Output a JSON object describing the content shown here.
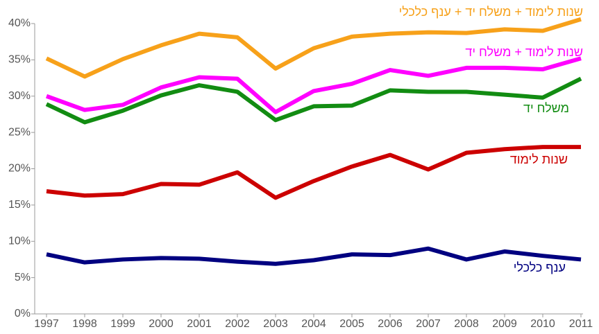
{
  "chart_data": {
    "type": "line",
    "x": [
      1997,
      1998,
      1999,
      2000,
      2001,
      2002,
      2003,
      2004,
      2005,
      2006,
      2007,
      2008,
      2009,
      2010,
      2011
    ],
    "xlim": [
      1997,
      2011
    ],
    "ylim": [
      0,
      40
    ],
    "yticks": [
      {
        "value": 0,
        "label": "0%"
      },
      {
        "value": 5,
        "label": "5%"
      },
      {
        "value": 10,
        "label": "10%"
      },
      {
        "value": 15,
        "label": "15%"
      },
      {
        "value": 20,
        "label": "20%"
      },
      {
        "value": 25,
        "label": "25%"
      },
      {
        "value": 30,
        "label": "30%"
      },
      {
        "value": 35,
        "label": "35%"
      },
      {
        "value": 40,
        "label": "40%"
      }
    ],
    "grid": false,
    "series": [
      {
        "name": "שנות לימוד + משלח יד + ענף כלכלי",
        "color": "#f7a11a",
        "values": [
          35.2,
          32.7,
          35.1,
          37.0,
          38.6,
          38.1,
          33.8,
          36.6,
          38.2,
          38.6,
          38.8,
          38.7,
          39.2,
          39.0,
          40.6
        ]
      },
      {
        "name": "שנות לימוד + משלח יד",
        "color": "#ff00ff",
        "values": [
          30.0,
          28.1,
          28.8,
          31.2,
          32.6,
          32.4,
          27.8,
          30.7,
          31.7,
          33.6,
          32.8,
          33.9,
          33.9,
          33.7,
          35.2
        ]
      },
      {
        "name": "משלח יד",
        "color": "#128c12",
        "values": [
          28.9,
          26.4,
          28.0,
          30.1,
          31.5,
          30.6,
          26.7,
          28.6,
          28.7,
          30.8,
          30.6,
          30.6,
          30.2,
          29.8,
          32.4
        ]
      },
      {
        "name": "שנות לימוד",
        "color": "#cc0000",
        "values": [
          16.9,
          16.3,
          16.5,
          17.9,
          17.8,
          19.5,
          16.0,
          18.3,
          20.3,
          21.9,
          19.9,
          22.2,
          22.7,
          23.0,
          23.0
        ]
      },
      {
        "name": "ענף כלכלי",
        "color": "#000080",
        "values": [
          8.2,
          7.1,
          7.5,
          7.7,
          7.6,
          7.2,
          6.9,
          7.4,
          8.2,
          8.1,
          9.0,
          7.5,
          8.6,
          8.0,
          7.5
        ]
      }
    ]
  }
}
